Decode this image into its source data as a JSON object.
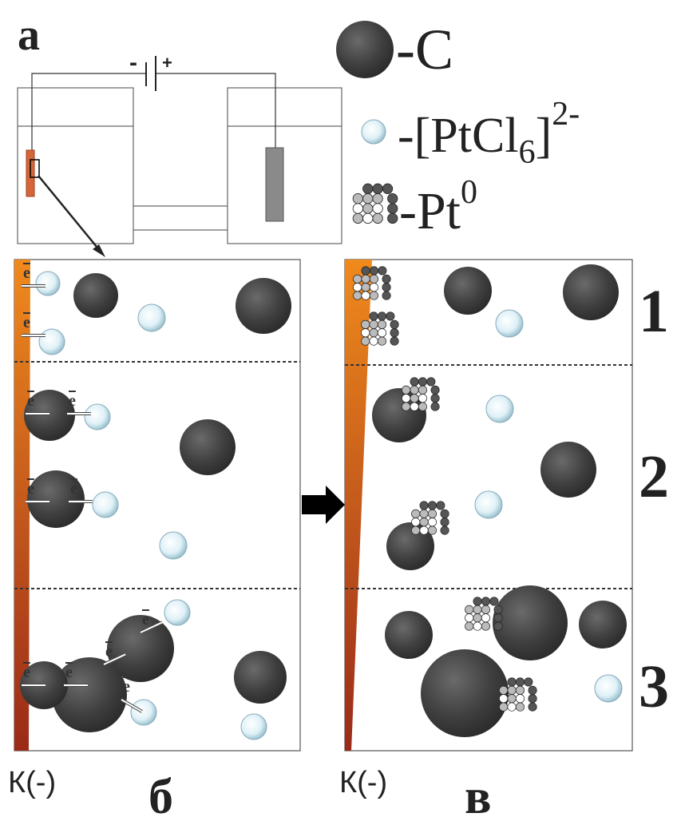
{
  "labels": {
    "panel_a": "а",
    "panel_b": "б",
    "panel_v": "в",
    "cathode": "К(-)"
  },
  "battery": {
    "minus": "-",
    "plus": "+"
  },
  "legend": {
    "carbon": "-C",
    "ptcl6": [
      "-[PtCl",
      "6",
      "]",
      "2-"
    ],
    "pt": [
      "-Pt",
      "0"
    ]
  },
  "rows": [
    "1",
    "2",
    "3"
  ],
  "electron": "e"
}
